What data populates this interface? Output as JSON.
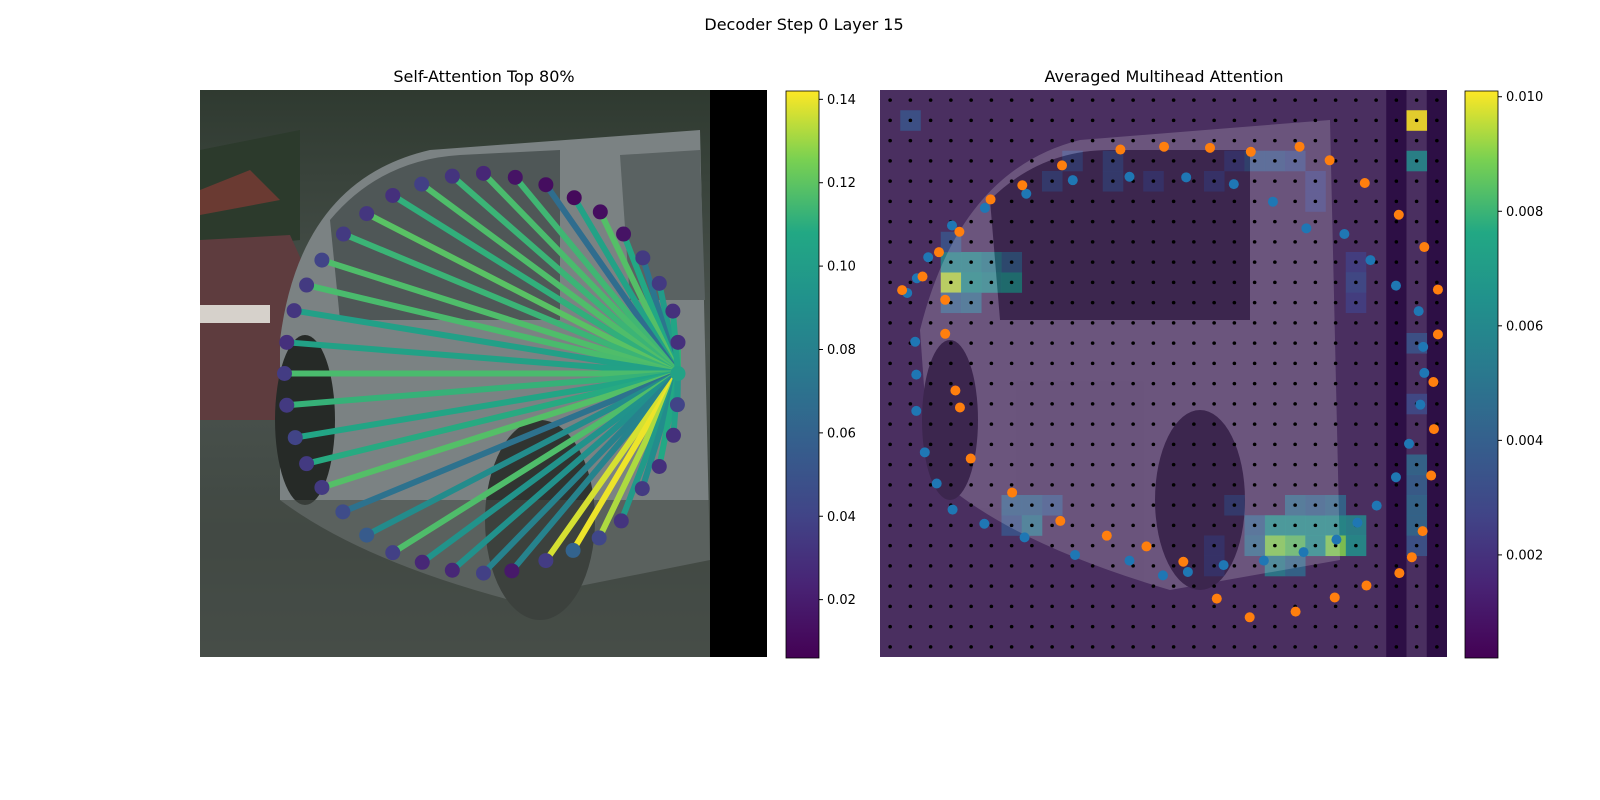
{
  "figure_title": "Decoder Step 0 Layer 15",
  "chart_data": [
    {
      "type": "network",
      "title": "Self-Attention Top 80%",
      "background": "camera image (car)",
      "nodes": [
        [
          0.843,
          0.5
        ],
        [
          0.842,
          0.555
        ],
        [
          0.835,
          0.609
        ],
        [
          0.81,
          0.664
        ],
        [
          0.78,
          0.703
        ],
        [
          0.743,
          0.76
        ],
        [
          0.704,
          0.79
        ],
        [
          0.658,
          0.812
        ],
        [
          0.61,
          0.83
        ],
        [
          0.55,
          0.848
        ],
        [
          0.5,
          0.852
        ],
        [
          0.445,
          0.847
        ],
        [
          0.392,
          0.833
        ],
        [
          0.34,
          0.816
        ],
        [
          0.294,
          0.785
        ],
        [
          0.252,
          0.744
        ],
        [
          0.215,
          0.701
        ],
        [
          0.188,
          0.659
        ],
        [
          0.168,
          0.613
        ],
        [
          0.153,
          0.556
        ],
        [
          0.149,
          0.5
        ],
        [
          0.153,
          0.445
        ],
        [
          0.166,
          0.389
        ],
        [
          0.188,
          0.344
        ],
        [
          0.215,
          0.3
        ],
        [
          0.253,
          0.254
        ],
        [
          0.294,
          0.218
        ],
        [
          0.34,
          0.186
        ],
        [
          0.391,
          0.166
        ],
        [
          0.445,
          0.152
        ],
        [
          0.5,
          0.147
        ],
        [
          0.556,
          0.154
        ],
        [
          0.61,
          0.167
        ],
        [
          0.66,
          0.19
        ],
        [
          0.706,
          0.215
        ],
        [
          0.747,
          0.254
        ],
        [
          0.781,
          0.296
        ],
        [
          0.81,
          0.341
        ],
        [
          0.834,
          0.39
        ],
        [
          0.843,
          0.445
        ]
      ],
      "source_node": 0,
      "edges": [
        {
          "to": 37,
          "w": 0.099
        },
        {
          "to": 36,
          "w": 0.072
        },
        {
          "to": 35,
          "w": 0.108
        },
        {
          "to": 34,
          "w": 0.118
        },
        {
          "to": 33,
          "w": 0.104
        },
        {
          "to": 32,
          "w": 0.067
        },
        {
          "to": 31,
          "w": 0.114
        },
        {
          "to": 30,
          "w": 0.116
        },
        {
          "to": 29,
          "w": 0.113
        },
        {
          "to": 28,
          "w": 0.117
        },
        {
          "to": 27,
          "w": 0.111
        },
        {
          "to": 26,
          "w": 0.119
        },
        {
          "to": 25,
          "w": 0.113
        },
        {
          "to": 24,
          "w": 0.117
        },
        {
          "to": 23,
          "w": 0.116
        },
        {
          "to": 22,
          "w": 0.102
        },
        {
          "to": 21,
          "w": 0.103
        },
        {
          "to": 20,
          "w": 0.116
        },
        {
          "to": 19,
          "w": 0.112
        },
        {
          "to": 18,
          "w": 0.106
        },
        {
          "to": 17,
          "w": 0.109
        },
        {
          "to": 16,
          "w": 0.118
        },
        {
          "to": 15,
          "w": 0.07
        },
        {
          "to": 14,
          "w": 0.088
        },
        {
          "to": 13,
          "w": 0.117
        },
        {
          "to": 12,
          "w": 0.093
        },
        {
          "to": 11,
          "w": 0.092
        },
        {
          "to": 10,
          "w": 0.081
        },
        {
          "to": 9,
          "w": 0.082
        },
        {
          "to": 8,
          "w": 0.137
        },
        {
          "to": 7,
          "w": 0.14
        },
        {
          "to": 6,
          "w": 0.132
        },
        {
          "to": 5,
          "w": 0.098
        },
        {
          "to": 4,
          "w": 0.089
        },
        {
          "to": 3,
          "w": 0.108
        },
        {
          "to": 2,
          "w": 0.102
        },
        {
          "to": 1,
          "w": 0.098
        },
        {
          "to": 39,
          "w": 0.112
        },
        {
          "to": 38,
          "w": 0.106
        }
      ],
      "node_values": [
        0.104,
        0.04,
        0.03,
        0.03,
        0.035,
        0.032,
        0.042,
        0.06,
        0.036,
        0.018,
        0.038,
        0.025,
        0.025,
        0.038,
        0.055,
        0.045,
        0.035,
        0.035,
        0.04,
        0.035,
        0.036,
        0.03,
        0.033,
        0.035,
        0.04,
        0.035,
        0.033,
        0.03,
        0.038,
        0.032,
        0.025,
        0.015,
        0.012,
        0.01,
        0.012,
        0.015,
        0.035,
        0.035,
        0.03,
        0.03
      ],
      "colorbar": {
        "min": 0.006,
        "max": 0.142,
        "ticks": [
          0.02,
          0.04,
          0.06,
          0.08,
          0.1,
          0.12,
          0.14
        ],
        "tick_labels": [
          "0.02",
          "0.04",
          "0.06",
          "0.08",
          "0.10",
          "0.12",
          "0.14"
        ],
        "colormap": "viridis"
      }
    },
    {
      "type": "heatmap",
      "title": "Averaged Multihead Attention",
      "grid": {
        "rows": 28,
        "cols": 28
      },
      "hotspots": [
        {
          "row": 1,
          "col": 26,
          "v": 0.0101
        },
        {
          "row": 1,
          "col": 1,
          "v": 0.0035
        },
        {
          "row": 3,
          "col": 26,
          "v": 0.0062
        },
        {
          "row": 9,
          "col": 3,
          "v": 0.0095
        },
        {
          "row": 9,
          "col": 4,
          "v": 0.0065
        },
        {
          "row": 8,
          "col": 3,
          "v": 0.006
        },
        {
          "row": 8,
          "col": 4,
          "v": 0.006
        },
        {
          "row": 9,
          "col": 5,
          "v": 0.006
        },
        {
          "row": 9,
          "col": 6,
          "v": 0.0065
        },
        {
          "row": 8,
          "col": 5,
          "v": 0.0055
        },
        {
          "row": 10,
          "col": 3,
          "v": 0.004
        },
        {
          "row": 10,
          "col": 4,
          "v": 0.0045
        },
        {
          "row": 7,
          "col": 3,
          "v": 0.0035
        },
        {
          "row": 8,
          "col": 6,
          "v": 0.004
        },
        {
          "row": 21,
          "col": 19,
          "v": 0.0065
        },
        {
          "row": 21,
          "col": 20,
          "v": 0.0065
        },
        {
          "row": 21,
          "col": 21,
          "v": 0.0065
        },
        {
          "row": 21,
          "col": 22,
          "v": 0.0065
        },
        {
          "row": 21,
          "col": 23,
          "v": 0.006
        },
        {
          "row": 22,
          "col": 19,
          "v": 0.009
        },
        {
          "row": 22,
          "col": 20,
          "v": 0.0085
        },
        {
          "row": 22,
          "col": 21,
          "v": 0.0065
        },
        {
          "row": 22,
          "col": 22,
          "v": 0.009
        },
        {
          "row": 22,
          "col": 23,
          "v": 0.0065
        },
        {
          "row": 23,
          "col": 19,
          "v": 0.0055
        },
        {
          "row": 23,
          "col": 20,
          "v": 0.0045
        },
        {
          "row": 20,
          "col": 20,
          "v": 0.0045
        },
        {
          "row": 20,
          "col": 21,
          "v": 0.004
        },
        {
          "row": 20,
          "col": 22,
          "v": 0.0045
        },
        {
          "row": 21,
          "col": 18,
          "v": 0.004
        },
        {
          "row": 22,
          "col": 18,
          "v": 0.0045
        },
        {
          "row": 20,
          "col": 17,
          "v": 0.003
        },
        {
          "row": 21,
          "col": 26,
          "v": 0.0045
        },
        {
          "row": 22,
          "col": 26,
          "v": 0.0035
        },
        {
          "row": 19,
          "col": 26,
          "v": 0.004
        },
        {
          "row": 18,
          "col": 26,
          "v": 0.0045
        },
        {
          "row": 20,
          "col": 26,
          "v": 0.0045
        },
        {
          "row": 15,
          "col": 26,
          "v": 0.003
        },
        {
          "row": 12,
          "col": 26,
          "v": 0.0035
        },
        {
          "row": 20,
          "col": 6,
          "v": 0.004
        },
        {
          "row": 21,
          "col": 6,
          "v": 0.0035
        },
        {
          "row": 20,
          "col": 7,
          "v": 0.004
        },
        {
          "row": 21,
          "col": 7,
          "v": 0.005
        },
        {
          "row": 20,
          "col": 8,
          "v": 0.0035
        },
        {
          "row": 3,
          "col": 9,
          "v": 0.003
        },
        {
          "row": 4,
          "col": 8,
          "v": 0.003
        },
        {
          "row": 3,
          "col": 11,
          "v": 0.003
        },
        {
          "row": 4,
          "col": 11,
          "v": 0.003
        },
        {
          "row": 4,
          "col": 13,
          "v": 0.0025
        },
        {
          "row": 4,
          "col": 16,
          "v": 0.0025
        },
        {
          "row": 3,
          "col": 17,
          "v": 0.0025
        },
        {
          "row": 3,
          "col": 18,
          "v": 0.0035
        },
        {
          "row": 3,
          "col": 19,
          "v": 0.0035
        },
        {
          "row": 3,
          "col": 20,
          "v": 0.003
        },
        {
          "row": 4,
          "col": 21,
          "v": 0.0025
        },
        {
          "row": 5,
          "col": 21,
          "v": 0.0025
        },
        {
          "row": 8,
          "col": 23,
          "v": 0.0025
        },
        {
          "row": 9,
          "col": 23,
          "v": 0.003
        },
        {
          "row": 10,
          "col": 23,
          "v": 0.0025
        },
        {
          "row": 22,
          "col": 16,
          "v": 0.0025
        },
        {
          "row": 23,
          "col": 16,
          "v": 0.0025
        }
      ],
      "dark_columns": [
        25,
        27
      ],
      "series": [
        {
          "name": "blue points",
          "color": "#1f77b4",
          "points": [
            [
              0.048,
              0.358
            ],
            [
              0.065,
              0.332
            ],
            [
              0.085,
              0.295
            ],
            [
              0.127,
              0.239
            ],
            [
              0.185,
              0.208
            ],
            [
              0.258,
              0.183
            ],
            [
              0.34,
              0.159
            ],
            [
              0.44,
              0.153
            ],
            [
              0.54,
              0.154
            ],
            [
              0.624,
              0.166
            ],
            [
              0.693,
              0.197
            ],
            [
              0.752,
              0.244
            ],
            [
              0.819,
              0.254
            ],
            [
              0.865,
              0.3
            ],
            [
              0.91,
              0.345
            ],
            [
              0.95,
              0.39
            ],
            [
              0.958,
              0.453
            ],
            [
              0.96,
              0.499
            ],
            [
              0.953,
              0.555
            ],
            [
              0.933,
              0.624
            ],
            [
              0.91,
              0.683
            ],
            [
              0.876,
              0.733
            ],
            [
              0.842,
              0.763
            ],
            [
              0.805,
              0.793
            ],
            [
              0.747,
              0.815
            ],
            [
              0.677,
              0.83
            ],
            [
              0.606,
              0.838
            ],
            [
              0.543,
              0.85
            ],
            [
              0.499,
              0.856
            ],
            [
              0.44,
              0.83
            ],
            [
              0.344,
              0.82
            ],
            [
              0.255,
              0.789
            ],
            [
              0.184,
              0.765
            ],
            [
              0.128,
              0.74
            ],
            [
              0.1,
              0.694
            ],
            [
              0.079,
              0.639
            ],
            [
              0.064,
              0.566
            ],
            [
              0.064,
              0.502
            ],
            [
              0.062,
              0.444
            ]
          ]
        },
        {
          "name": "orange points",
          "color": "#ff7f0e",
          "points": [
            [
              0.039,
              0.353
            ],
            [
              0.075,
              0.329
            ],
            [
              0.104,
              0.286
            ],
            [
              0.14,
              0.25
            ],
            [
              0.195,
              0.193
            ],
            [
              0.251,
              0.168
            ],
            [
              0.321,
              0.133
            ],
            [
              0.424,
              0.105
            ],
            [
              0.501,
              0.1
            ],
            [
              0.582,
              0.102
            ],
            [
              0.654,
              0.109
            ],
            [
              0.74,
              0.1
            ],
            [
              0.793,
              0.124
            ],
            [
              0.855,
              0.164
            ],
            [
              0.915,
              0.22
            ],
            [
              0.96,
              0.277
            ],
            [
              0.984,
              0.352
            ],
            [
              0.984,
              0.431
            ],
            [
              0.976,
              0.515
            ],
            [
              0.977,
              0.598
            ],
            [
              0.972,
              0.68
            ],
            [
              0.957,
              0.778
            ],
            [
              0.938,
              0.824
            ],
            [
              0.916,
              0.852
            ],
            [
              0.858,
              0.874
            ],
            [
              0.802,
              0.895
            ],
            [
              0.733,
              0.92
            ],
            [
              0.652,
              0.93
            ],
            [
              0.594,
              0.897
            ],
            [
              0.535,
              0.832
            ],
            [
              0.47,
              0.805
            ],
            [
              0.4,
              0.786
            ],
            [
              0.318,
              0.76
            ],
            [
              0.233,
              0.71
            ],
            [
              0.16,
              0.65
            ],
            [
              0.141,
              0.56
            ],
            [
              0.133,
              0.53
            ],
            [
              0.115,
              0.43
            ],
            [
              0.115,
              0.37
            ]
          ]
        }
      ],
      "colorbar": {
        "min": 0.0002,
        "max": 0.0101,
        "ticks": [
          0.002,
          0.004,
          0.006,
          0.008,
          0.01
        ],
        "tick_labels": [
          "0.002",
          "0.004",
          "0.006",
          "0.008",
          "0.010"
        ],
        "colormap": "viridis"
      }
    }
  ]
}
